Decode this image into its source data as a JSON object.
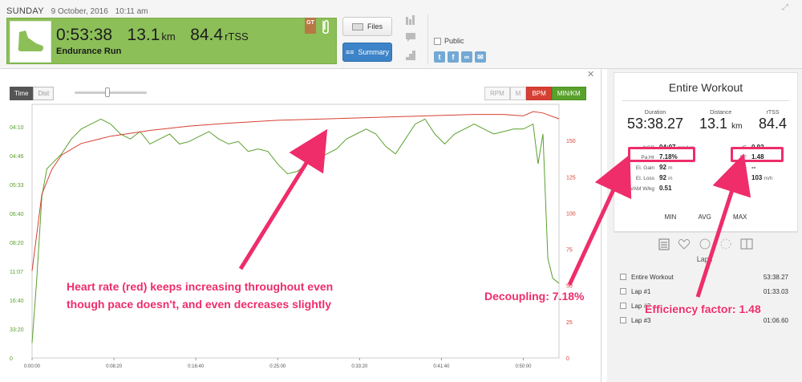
{
  "header": {
    "day": "SUNDAY",
    "date": "9 October, 2016",
    "time": "10:11 am",
    "duration": "0:53:38",
    "distance": "13.1",
    "distance_unit": "km",
    "tss": "84.4",
    "tss_unit": "rTSS",
    "workout_type": "Endurance Run",
    "badge": "GT",
    "files_label": "Files",
    "summary_label": "Summary",
    "public_label": "Public",
    "accent": "#8cbf58"
  },
  "chart": {
    "toggle_time": "Time",
    "toggle_dist": "Dist",
    "channels": [
      "RPM",
      "M",
      "BPM",
      "MIN/KM"
    ],
    "left_ticks": [
      "04:10",
      "04:46",
      "05:33",
      "06:40",
      "08:20",
      "11:07",
      "16:40",
      "33:20",
      "0"
    ],
    "right_ticks": [
      "150",
      "125",
      "100",
      "75",
      "50",
      "25",
      "0"
    ],
    "x_ticks": [
      "0:00:00",
      "0:08:20",
      "0:16:40",
      "0:25:00",
      "0:33:20",
      "0:41:40",
      "0:50:00"
    ]
  },
  "chart_data": {
    "type": "line",
    "x_unit": "elapsed time (h:mm:ss)",
    "xlim": [
      "0:00:00",
      "0:53:38"
    ],
    "series": [
      {
        "color": "#d64032",
        "axis": "right",
        "ylim": [
          0,
          175
        ],
        "x": [
          "0:00:00",
          "0:01:00",
          "0:02:00",
          "0:03:00",
          "0:05:00",
          "0:08:00",
          "0:12:00",
          "0:16:00",
          "0:20:00",
          "0:25:00",
          "0:30:00",
          "0:35:00",
          "0:40:00",
          "0:45:00",
          "0:48:00",
          "0:50:00",
          "0:51:00",
          "0:52:00",
          "0:53:38"
        ],
        "values": [
          60,
          113,
          130,
          140,
          148,
          153,
          157,
          160,
          162,
          164,
          165,
          166,
          167,
          168,
          168,
          167,
          170,
          169,
          165
        ]
      },
      {
        "color": "#5aa02c",
        "axis": "left",
        "x": [
          "0:00:00",
          "0:00:30",
          "0:01:00",
          "0:01:30",
          "0:02:00",
          "0:03:00",
          "0:04:00",
          "0:05:00",
          "0:06:00",
          "0:07:00",
          "0:08:00",
          "0:09:00",
          "0:10:00",
          "0:11:00",
          "0:12:00",
          "0:13:00",
          "0:14:00",
          "0:15:00",
          "0:16:00",
          "0:17:00",
          "0:18:00",
          "0:19:00",
          "0:20:00",
          "0:21:00",
          "0:22:00",
          "0:23:00",
          "0:24:00",
          "0:25:00",
          "0:26:00",
          "0:27:00",
          "0:28:00",
          "0:29:00",
          "0:30:00",
          "0:31:00",
          "0:32:00",
          "0:33:00",
          "0:34:00",
          "0:35:00",
          "0:36:00",
          "0:37:00",
          "0:38:00",
          "0:39:00",
          "0:40:00",
          "0:41:00",
          "0:42:00",
          "0:43:00",
          "0:44:00",
          "0:45:00",
          "0:46:00",
          "0:47:00",
          "0:48:00",
          "0:49:00",
          "0:50:00",
          "0:51:00",
          "0:51:30",
          "0:52:00",
          "0:52:30",
          "0:53:00",
          "0:53:38"
        ],
        "values": [
          94,
          67,
          35,
          24,
          22,
          18,
          12,
          8,
          6,
          4,
          6,
          10,
          12,
          9,
          14,
          12,
          10,
          14,
          13,
          11,
          9,
          12,
          14,
          13,
          17,
          16,
          17,
          22,
          26,
          25,
          22,
          20,
          18,
          16,
          12,
          10,
          8,
          10,
          15,
          18,
          12,
          6,
          4,
          10,
          14,
          10,
          8,
          6,
          8,
          10,
          9,
          8,
          8,
          6,
          22,
          10,
          60,
          68,
          70
        ]
      }
    ]
  },
  "summary": {
    "title": "Entire Workout",
    "duration_label": "Duration",
    "duration": "53:38.27",
    "distance_label": "Distance",
    "distance": "13.1",
    "distance_unit": "km",
    "rtss_label": "rTSS",
    "rtss": "84.4",
    "ngp_label": "NGP",
    "ngp": "04:07",
    "ngp_unit": "min/km",
    "pahr_label": "Pa:Hr",
    "pahr": "7.18%",
    "elgain_label": "El. Gain",
    "elgain": "92",
    "elgain_unit": "m",
    "elloss_label": "El. Loss",
    "elloss": "92",
    "elloss_unit": "m",
    "vamwkg_label": "VAM W/kg",
    "vamwkg": "0.51",
    "if_label": "IF",
    "if": "0.92",
    "ef_label": "EF",
    "ef": "1.48",
    "grade_label": "Grade",
    "grade": "--",
    "vam_label": "VAM",
    "vam": "103",
    "vam_unit": "m/h",
    "min_label": "MIN",
    "avg_label": "AVG",
    "max_label": "MAX",
    "laps_label": "Laps",
    "laps": [
      {
        "name": "Entire Workout",
        "time": "53:38.27"
      },
      {
        "name": "Lap #1",
        "time": "01:33.03"
      },
      {
        "name": "Lap #2",
        "time": ""
      },
      {
        "name": "Lap #3",
        "time": "01:06.60"
      }
    ]
  },
  "annotations": {
    "hr_line1": "Heart rate (red) keeps increasing throughout even",
    "hr_line2": "though pace doesn't, and even decreases slightly",
    "decoupling": "Decoupling: 7.18%",
    "ef": "Efficiency factor: 1.48"
  }
}
